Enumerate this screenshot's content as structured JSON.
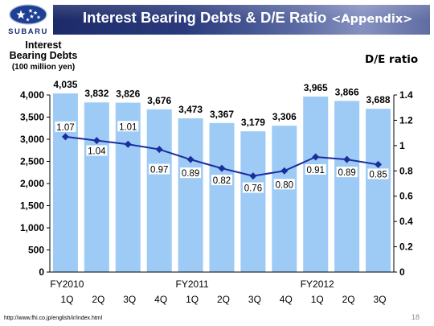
{
  "brand": {
    "logo_text": "SUBARU",
    "logo_icon": "subaru-pleiades-icon",
    "logo_color": "#1d3f94"
  },
  "header": {
    "title": "Interest Bearing Debts & D/E Ratio",
    "subtitle": "<Appendix>"
  },
  "chart_data": {
    "type": "bar",
    "categories": [
      "1Q",
      "2Q",
      "3Q",
      "4Q",
      "1Q",
      "2Q",
      "3Q",
      "4Q",
      "1Q",
      "2Q",
      "3Q"
    ],
    "groups": [
      {
        "label": "FY2010",
        "first_category": 0
      },
      {
        "label": "FY2011",
        "first_category": 4
      },
      {
        "label": "FY2012",
        "first_category": 8
      }
    ],
    "ylabel_lines": [
      "Interest",
      "Bearing Debts"
    ],
    "ylabel_unit": "(100 million yen)",
    "y2label": "D/E ratio",
    "ylim": [
      0,
      4000
    ],
    "yticks": [
      0,
      500,
      1000,
      1500,
      2000,
      2500,
      3000,
      3500,
      4000
    ],
    "ytick_labels": [
      "0",
      "500",
      "1,000",
      "1,500",
      "2,000",
      "2,500",
      "3,000",
      "3,500",
      "4,000"
    ],
    "y2lim": [
      0,
      1.4
    ],
    "y2ticks": [
      0,
      0.2,
      0.4,
      0.6,
      0.8,
      1,
      1.2,
      1.4
    ],
    "y2tick_labels": [
      "0",
      "0.2",
      "0.4",
      "0.6",
      "0.8",
      "1",
      "1.2",
      "1.4"
    ],
    "series": [
      {
        "type": "bar",
        "axis": "left",
        "color": "#9dcbf5",
        "values": [
          4035,
          3832,
          3826,
          3676,
          3473,
          3367,
          3179,
          3306,
          3965,
          3866,
          3688
        ],
        "labels": [
          "4,035",
          "3,832",
          "3,826",
          "3,676",
          "3,473",
          "3,367",
          "3,179",
          "3,306",
          "3,965",
          "3,866",
          "3,688"
        ]
      },
      {
        "type": "line",
        "axis": "right",
        "color": "#1a2e9e",
        "values": [
          1.07,
          1.04,
          1.01,
          0.97,
          0.89,
          0.82,
          0.76,
          0.8,
          0.91,
          0.89,
          0.85
        ],
        "labels": [
          "1.07",
          "1.04",
          "1.01",
          "0.97",
          "0.89",
          "0.82",
          "0.76",
          "0.80",
          "0.91",
          "0.89",
          "0.85"
        ]
      }
    ],
    "grid": false,
    "legend": "none"
  },
  "footer": {
    "url": "http://www.fhi.co.jp/english/ir/index.html",
    "page": "18"
  }
}
